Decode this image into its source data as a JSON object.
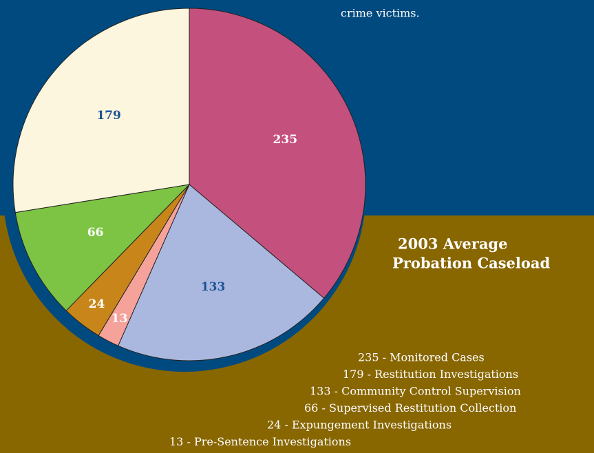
{
  "page": {
    "intro_tail": "crime victims."
  },
  "chart_data": {
    "type": "pie",
    "title": [
      "2003 Average",
      "Probation Caseload"
    ],
    "categories": [
      "235 - Monitored Cases",
      "179 - Restitution Investigations",
      "133 - Community Control Supervision",
      "66 - Supervised Restitution Collection",
      "24 - Expungement Investigations",
      "13 - Pre-Sentence Investigations"
    ],
    "values": [
      235,
      179,
      133,
      66,
      24,
      13
    ],
    "colors": [
      "#c4507e",
      "#fdf6de",
      "#aab8e0",
      "#7ec444",
      "#c8861a",
      "#f5a29b"
    ],
    "label_colors": [
      "#ffffff",
      "#1b5394",
      "#1b5394",
      "#ffffff",
      "#ffffff",
      "#ffffff"
    ],
    "slice_order": [
      0,
      2,
      5,
      4,
      3,
      1
    ]
  }
}
